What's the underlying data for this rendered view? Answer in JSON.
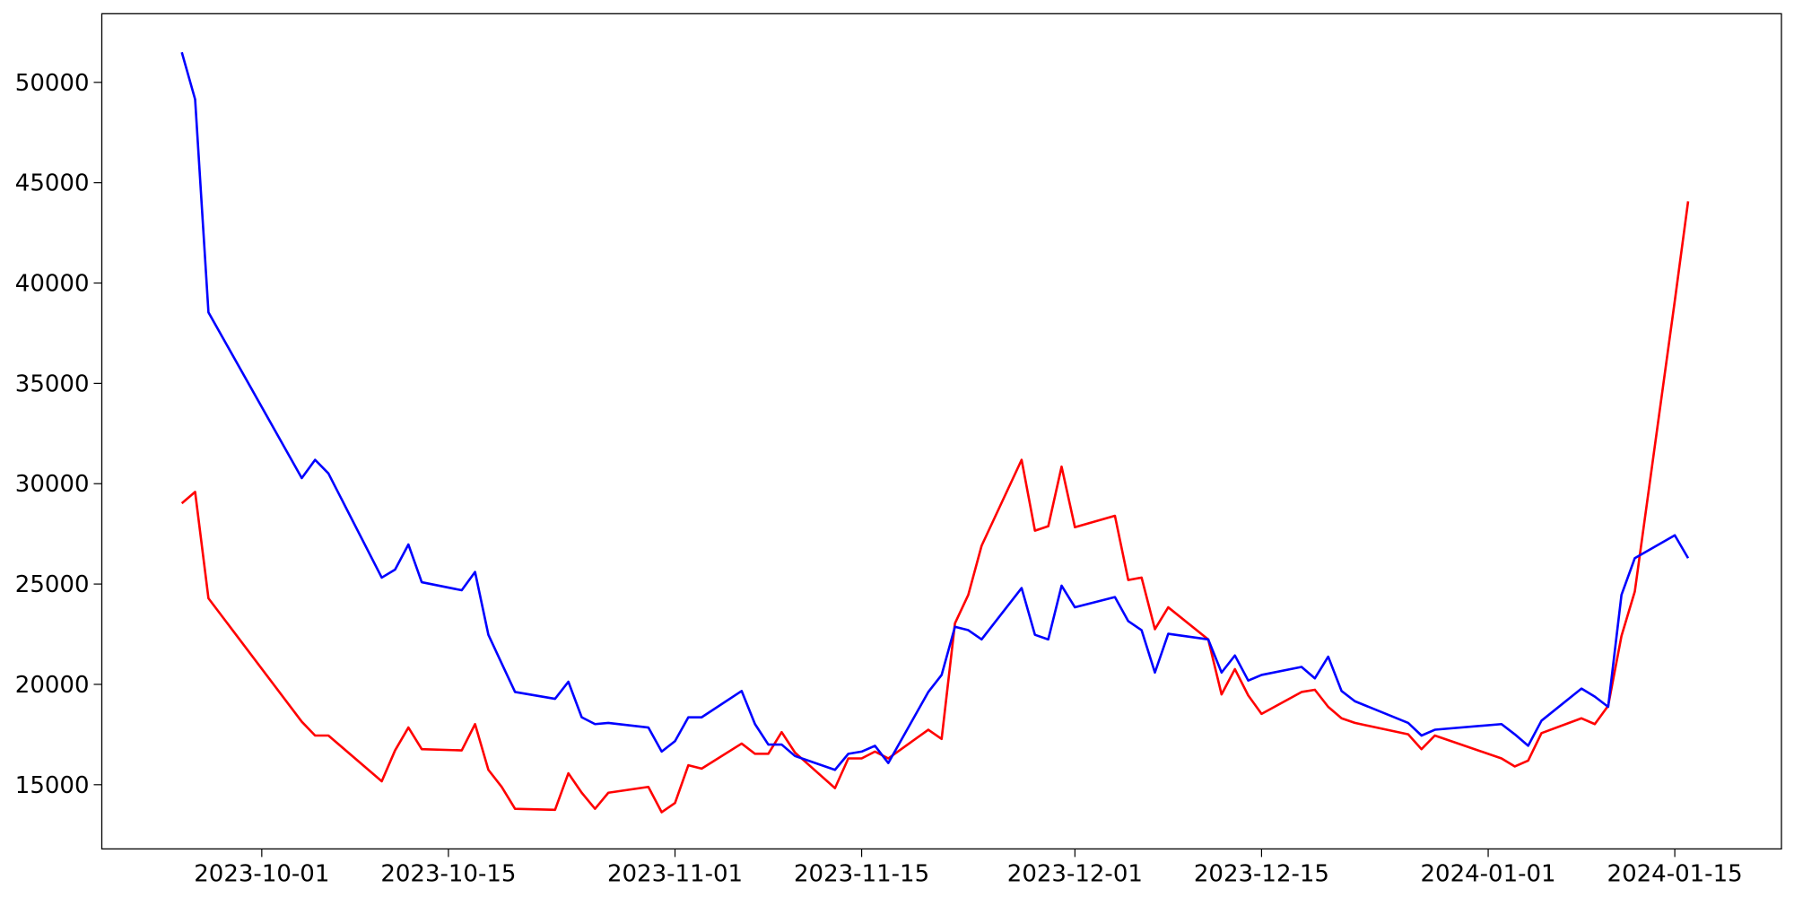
{
  "chart_data": {
    "type": "line",
    "x": [
      "2023-09-25",
      "2023-09-26",
      "2023-09-27",
      "2023-10-04",
      "2023-10-05",
      "2023-10-06",
      "2023-10-10",
      "2023-10-11",
      "2023-10-12",
      "2023-10-13",
      "2023-10-16",
      "2023-10-17",
      "2023-10-18",
      "2023-10-19",
      "2023-10-20",
      "2023-10-23",
      "2023-10-24",
      "2023-10-25",
      "2023-10-26",
      "2023-10-27",
      "2023-10-30",
      "2023-10-31",
      "2023-11-01",
      "2023-11-02",
      "2023-11-03",
      "2023-11-06",
      "2023-11-07",
      "2023-11-08",
      "2023-11-09",
      "2023-11-10",
      "2023-11-13",
      "2023-11-14",
      "2023-11-15",
      "2023-11-16",
      "2023-11-17",
      "2023-11-20",
      "2023-11-21",
      "2023-11-22",
      "2023-11-23",
      "2023-11-24",
      "2023-11-27",
      "2023-11-28",
      "2023-11-29",
      "2023-11-30",
      "2023-12-01",
      "2023-12-04",
      "2023-12-05",
      "2023-12-06",
      "2023-12-07",
      "2023-12-08",
      "2023-12-11",
      "2023-12-12",
      "2023-12-13",
      "2023-12-14",
      "2023-12-15",
      "2023-12-18",
      "2023-12-19",
      "2023-12-20",
      "2023-12-21",
      "2023-12-22",
      "2023-12-26",
      "2023-12-27",
      "2023-12-28",
      "2024-01-02",
      "2024-01-03",
      "2024-01-04",
      "2024-01-05",
      "2024-01-08",
      "2024-01-09",
      "2024-01-10",
      "2024-01-11",
      "2024-01-12",
      "2024-01-15",
      "2024-01-16"
    ],
    "series": [
      {
        "color": "#ff0000",
        "values": [
          29020,
          29590,
          24290,
          18140,
          17450,
          17450,
          15170,
          16710,
          17850,
          16770,
          16710,
          18020,
          15740,
          14890,
          13800,
          13750,
          15570,
          14600,
          13800,
          14600,
          14890,
          13630,
          14090,
          15970,
          15800,
          17050,
          16540,
          16540,
          17620,
          16600,
          14830,
          16310,
          16310,
          16650,
          16310,
          17740,
          17280,
          23040,
          24460,
          26910,
          31190,
          27660,
          27880,
          30850,
          27830,
          28400,
          25200,
          25320,
          22750,
          23840,
          22240,
          19500,
          20760,
          19450,
          18530,
          19620,
          19730,
          18880,
          18310,
          18080,
          17510,
          16770,
          17450,
          16310,
          15910,
          16200,
          17570,
          18310,
          18020,
          18930,
          22410,
          24630,
          39110,
          44070
        ]
      },
      {
        "color": "#0000ff",
        "values": [
          51500,
          49150,
          38540,
          30280,
          31190,
          30510,
          25320,
          25720,
          26970,
          25090,
          24690,
          25600,
          22470,
          21040,
          19620,
          19280,
          20130,
          18360,
          18020,
          18080,
          17850,
          16650,
          17170,
          18360,
          18360,
          19670,
          18020,
          17000,
          17000,
          16430,
          15740,
          16540,
          16650,
          16940,
          16080,
          19620,
          20470,
          22870,
          22700,
          22240,
          24800,
          22470,
          22240,
          24920,
          23840,
          24350,
          23150,
          22700,
          20590,
          22520,
          22240,
          20590,
          21440,
          20190,
          20470,
          20870,
          20300,
          21380,
          19670,
          19160,
          18080,
          17450,
          17740,
          18020,
          17510,
          16940,
          18190,
          19790,
          19390,
          18880,
          24460,
          26290,
          27430,
          26290
        ]
      }
    ],
    "xlim": [
      "2023-09-19",
      "2024-01-23"
    ],
    "xticks": [
      "2023-10-01",
      "2023-10-15",
      "2023-11-01",
      "2023-11-15",
      "2023-12-01",
      "2023-12-15",
      "2024-01-01",
      "2024-01-15"
    ],
    "ylim": [
      11800,
      53420
    ],
    "yticks": [
      15000,
      20000,
      25000,
      30000,
      35000,
      40000,
      45000,
      50000
    ],
    "grid": false
  }
}
